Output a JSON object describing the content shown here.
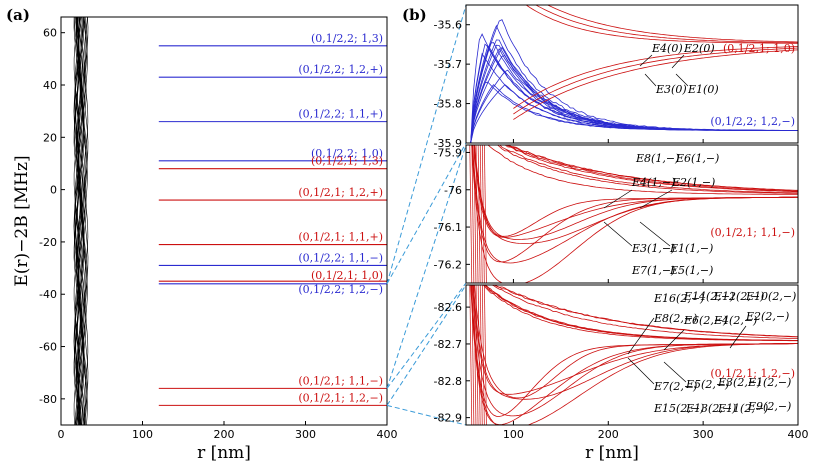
{
  "colors": {
    "blue": "#2b2bd0",
    "red": "#cc1010",
    "connector": "#3a9bd8",
    "curve": "#000000"
  },
  "panel_a": {
    "label": "(a)",
    "xlabel": "r [nm]",
    "ylabel": "E(r)−2B [MHz]",
    "xlim": [
      0,
      400
    ],
    "ylim": [
      -90,
      66
    ],
    "xticks": [
      "0",
      "100",
      "200",
      "300",
      "400"
    ],
    "yticks": [
      "60",
      "40",
      "20",
      "0",
      "-20",
      "-40",
      "-60",
      "-80"
    ],
    "states": [
      {
        "text": "(0,1/2,2;  1,3)",
        "energy": 55,
        "color": "blue"
      },
      {
        "text": "(0,1/2,2;  1,2,+)",
        "energy": 43,
        "color": "blue"
      },
      {
        "text": "(0,1/2,2;  1,1,+)",
        "energy": 26,
        "color": "blue"
      },
      {
        "text": "(0,1/2,2;  1,0)",
        "energy": 11,
        "color": "blue"
      },
      {
        "text": "(0,1/2,1;  1,3)",
        "energy": 8,
        "color": "red"
      },
      {
        "text": "(0,1/2,1;  1,2,+)",
        "energy": -4,
        "color": "red"
      },
      {
        "text": "(0,1/2,1;  1,1,+)",
        "energy": -21,
        "color": "red"
      },
      {
        "text": "(0,1/2,2;  1,1,−)",
        "energy": -29,
        "color": "blue"
      },
      {
        "text": "(0,1/2,1;  1,0)",
        "energy": -35,
        "color": "red"
      },
      {
        "text": "(0,1/2,2;  1,2,−)",
        "energy": -36,
        "color": "blue"
      },
      {
        "text": "(0,1/2,1;  1,1,−)",
        "energy": -76,
        "color": "red"
      },
      {
        "text": "(0,1/2,1;  1,2,−)",
        "energy": -82.5,
        "color": "red"
      }
    ]
  },
  "panel_b": {
    "label": "(b)",
    "xlabel": "r [nm]",
    "xlim": [
      50,
      400
    ],
    "xticks": [
      "100",
      "200",
      "300",
      "400"
    ],
    "subplots": [
      {
        "ylim": [
          -35.9,
          -35.55
        ],
        "yticks": [
          "-35.6",
          "-35.7",
          "-35.8",
          "-35.9"
        ],
        "state_text": "(0,1/2,2;  1,2,−)",
        "state_color": "blue",
        "state_text2": "(0,1/2,1;  1,0)",
        "state_color2": "red",
        "labels": [
          "E4(0)",
          "E2(0)",
          "E3(0)",
          "E1(0)"
        ]
      },
      {
        "ylim": [
          -76.25,
          -75.88
        ],
        "yticks": [
          "-75.9",
          "-76",
          "-76.1",
          "-76.2"
        ],
        "state_text": "(0,1/2,1;  1,1,−)",
        "state_color": "red",
        "labels": [
          "E8(1,−)",
          "E6(1,−)",
          "E4(1,−)",
          "E2(1,−)",
          "E3(1,−)",
          "E1(1,−)",
          "E7(1,−)",
          "E5(1,−)"
        ]
      },
      {
        "ylim": [
          -82.92,
          -82.54
        ],
        "yticks": [
          "-82.6",
          "-82.7",
          "-82.8",
          "-82.9"
        ],
        "state_text": "(0,1/2,1;  1,2,−)",
        "state_color": "red",
        "labels": [
          "E16(2,−)",
          "E14(2,−)",
          "E12(2,−)",
          "E10(2,−)",
          "E8(2,−)",
          "E6(2,−)",
          "E4(2,−)",
          "E2(2,−)",
          "E7(2,−)",
          "E5(2,−)",
          "E3(2,−)",
          "E1(2,−)",
          "E15(2,−)",
          "E13(2,−)",
          "E11(2,−)",
          "E9(2,−)"
        ]
      }
    ]
  }
}
